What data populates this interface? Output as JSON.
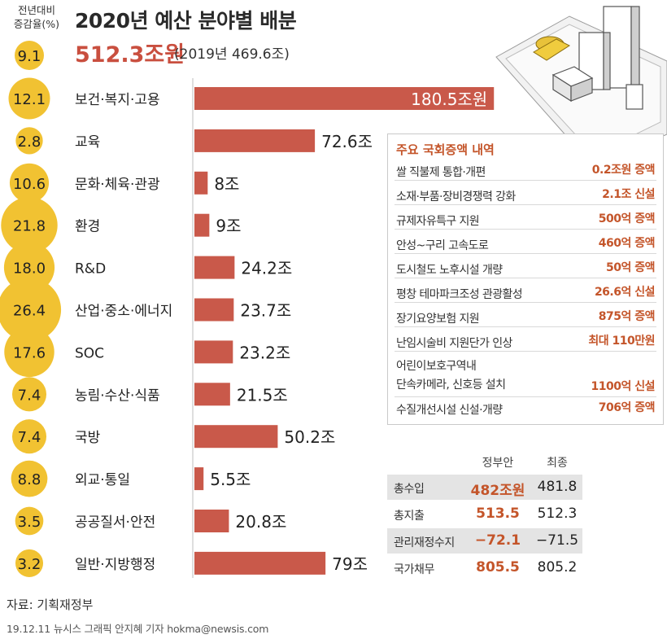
{
  "header": {
    "growth_label_line1": "전년대비",
    "growth_label_line2": "증감율(%)",
    "title": "2020년 예산 분야별 배분",
    "total_growth": "9.1",
    "total_amount": "512.3조원",
    "total_prev": "(2019년 469.6조)"
  },
  "chart_data": {
    "type": "bar",
    "orientation": "horizontal",
    "title": "2020년 예산 분야별 배분",
    "unit": "조",
    "categories": [
      "보건·복지·고용",
      "교육",
      "문화·체육·관광",
      "환경",
      "R&D",
      "산업·중소·에너지",
      "SOC",
      "농림·수산·식품",
      "국방",
      "외교·통일",
      "공공질서·안전",
      "일반·지방행정"
    ],
    "values": [
      180.5,
      72.6,
      8,
      9,
      24.2,
      23.7,
      23.2,
      21.5,
      50.2,
      5.5,
      20.8,
      79
    ],
    "value_labels": [
      "180.5조원",
      "72.6조",
      "8조",
      "9조",
      "24.2조",
      "23.7조",
      "23.2조",
      "21.5조",
      "50.2조",
      "5.5조",
      "20.8조",
      "79조"
    ],
    "growth_rates": [
      "12.1",
      "2.8",
      "10.6",
      "21.8",
      "18.0",
      "26.4",
      "17.6",
      "7.4",
      "7.4",
      "8.8",
      "3.5",
      "3.2"
    ],
    "colors": {
      "bar": "#c9594a",
      "circle": "#f1c232"
    }
  },
  "callout": {
    "title": "주요 국회증액 내역",
    "rows": [
      {
        "item": "쌀 직불제 통합·개편",
        "value": "0.2조원 증액"
      },
      {
        "item": "소재·부품·장비경쟁력 강화",
        "value": "2.1조 신설"
      },
      {
        "item": "규제자유특구 지원",
        "value": "500억 증액"
      },
      {
        "item": "안성~구리 고속도로",
        "value": "460억 증액"
      },
      {
        "item": "도시철도 노후시설 개량",
        "value": "50억 증액"
      },
      {
        "item": "평창 테마파크조성 관광활성",
        "value": "26.6억 신설"
      },
      {
        "item": "장기요양보험 지원",
        "value": "875억 증액"
      },
      {
        "item": "난임시술비 지원단가 인상",
        "value": "최대 110만원"
      },
      {
        "item_line1": "어린이보호구역내",
        "item": "단속카메라, 신호등 설치",
        "value": "1100억 신설"
      },
      {
        "item": "수질개선시설 신설·개량",
        "value": "706억 증액"
      }
    ]
  },
  "summary": {
    "col_gov": "정부안",
    "col_final": "최종",
    "rows": [
      {
        "label": "총수입",
        "gov": "482조원",
        "final": "481.8"
      },
      {
        "label": "총지출",
        "gov": "513.5",
        "final": "512.3"
      },
      {
        "label": "관리재정수지",
        "gov": "−72.1",
        "final": "−71.5"
      },
      {
        "label": "국가채무",
        "gov": "805.5",
        "final": "805.2"
      }
    ]
  },
  "footer": {
    "source": "자료: 기획재정부",
    "credit": "19.12.11 뉴시스 그래픽 안지혜 기자 hokma@newsis.com"
  }
}
